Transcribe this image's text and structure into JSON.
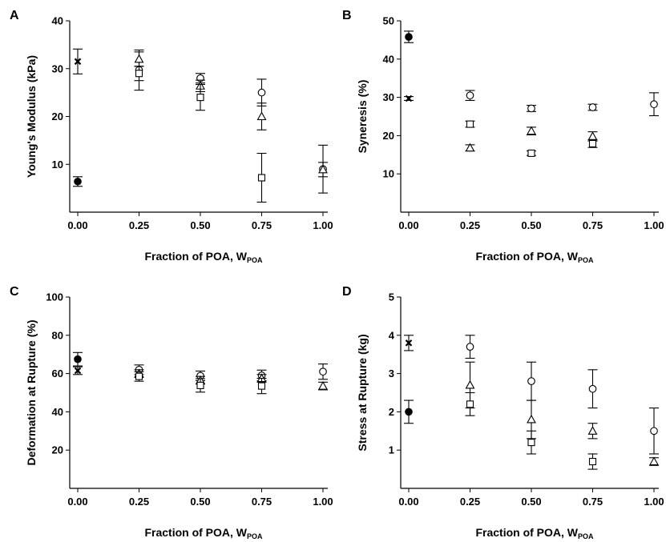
{
  "chart_data": [
    {
      "panel": "A",
      "type": "scatter",
      "xlabel": "Fraction of POA, W",
      "xlabel_sub": "POA",
      "ylabel": "Young's Modulus (kPa)",
      "xlim": [
        0,
        1.0
      ],
      "ylim": [
        0,
        40
      ],
      "x_ticks": [
        "0.00",
        "0.25",
        "0.50",
        "0.75",
        "1.00"
      ],
      "y_ticks": [
        "10",
        "20",
        "30",
        "40"
      ],
      "grid": false,
      "series": [
        {
          "marker": "filled-circle",
          "points": [
            {
              "x": 0.0,
              "y": 6.4,
              "err": 1.0
            }
          ]
        },
        {
          "marker": "cross",
          "points": [
            {
              "x": 0.0,
              "y": 31.5,
              "err": 2.6
            }
          ]
        },
        {
          "marker": "open-circle",
          "points": [
            {
              "x": 0.25,
              "y": 29.7,
              "err": 4.2
            },
            {
              "x": 0.5,
              "y": 28.0,
              "err": 1.0
            },
            {
              "x": 0.75,
              "y": 25.0,
              "err": 2.8
            },
            {
              "x": 1.0,
              "y": 9.0,
              "err": 5.0
            }
          ]
        },
        {
          "marker": "open-triangle",
          "points": [
            {
              "x": 0.25,
              "y": 32.0,
              "err": 1.5
            },
            {
              "x": 0.5,
              "y": 26.4,
              "err": 1.2
            },
            {
              "x": 0.75,
              "y": 20.0,
              "err": 2.8
            },
            {
              "x": 1.0,
              "y": 8.9,
              "err": 1.5
            }
          ]
        },
        {
          "marker": "open-square",
          "points": [
            {
              "x": 0.25,
              "y": 29.0,
              "err": 1.5
            },
            {
              "x": 0.5,
              "y": 24.0,
              "err": 2.7
            },
            {
              "x": 0.75,
              "y": 7.2,
              "err": 5.1
            }
          ]
        }
      ]
    },
    {
      "panel": "B",
      "type": "scatter",
      "xlabel": "Fraction of POA, W",
      "xlabel_sub": "POA",
      "ylabel": "Syneresis (%)",
      "xlim": [
        0,
        1.0
      ],
      "ylim": [
        0,
        50
      ],
      "x_ticks": [
        "0.00",
        "0.25",
        "0.50",
        "0.75",
        "1.00"
      ],
      "y_ticks": [
        "10",
        "20",
        "30",
        "40",
        "50"
      ],
      "grid": false,
      "series": [
        {
          "marker": "filled-circle",
          "points": [
            {
              "x": 0.0,
              "y": 45.8,
              "err": 1.5
            }
          ]
        },
        {
          "marker": "cross",
          "points": [
            {
              "x": 0.0,
              "y": 29.7,
              "err": 0.5
            }
          ]
        },
        {
          "marker": "open-circle",
          "points": [
            {
              "x": 0.25,
              "y": 30.5,
              "err": 1.3
            },
            {
              "x": 0.5,
              "y": 27.1,
              "err": 0.8
            },
            {
              "x": 0.75,
              "y": 27.4,
              "err": 0.8
            },
            {
              "x": 1.0,
              "y": 28.2,
              "err": 3.0
            }
          ]
        },
        {
          "marker": "open-triangle",
          "points": [
            {
              "x": 0.25,
              "y": 16.8,
              "err": 0.8
            },
            {
              "x": 0.5,
              "y": 21.2,
              "err": 1.0
            },
            {
              "x": 0.75,
              "y": 19.8,
              "err": 1.2
            }
          ]
        },
        {
          "marker": "open-square",
          "points": [
            {
              "x": 0.25,
              "y": 23.0,
              "err": 0.8
            },
            {
              "x": 0.5,
              "y": 15.4,
              "err": 0.6
            },
            {
              "x": 0.75,
              "y": 17.9,
              "err": 1.0
            }
          ]
        }
      ]
    },
    {
      "panel": "C",
      "type": "scatter",
      "xlabel": "Fraction of POA, W",
      "xlabel_sub": "POA",
      "ylabel": "Deformation at Rupture (%)",
      "xlim": [
        0,
        1.0
      ],
      "ylim": [
        0,
        100
      ],
      "x_ticks": [
        "0.00",
        "0.25",
        "0.50",
        "0.75",
        "1.00"
      ],
      "y_ticks": [
        "20",
        "40",
        "60",
        "80",
        "100"
      ],
      "grid": false,
      "series": [
        {
          "marker": "filled-circle",
          "points": [
            {
              "x": 0.0,
              "y": 67.5,
              "err": 3.5
            }
          ]
        },
        {
          "marker": "cross",
          "points": [
            {
              "x": 0.0,
              "y": 61.5,
              "err": 2.0
            }
          ]
        },
        {
          "marker": "open-circle",
          "points": [
            {
              "x": 0.25,
              "y": 62.0,
              "err": 2.5
            },
            {
              "x": 0.5,
              "y": 58.8,
              "err": 2.5
            },
            {
              "x": 0.75,
              "y": 59.0,
              "err": 2.8
            },
            {
              "x": 1.0,
              "y": 61.0,
              "err": 4.0
            }
          ]
        },
        {
          "marker": "open-triangle",
          "points": [
            {
              "x": 0.25,
              "y": 60.0,
              "err": 2.0
            },
            {
              "x": 0.5,
              "y": 56.5,
              "err": 2.0
            },
            {
              "x": 0.75,
              "y": 57.5,
              "err": 2.0
            },
            {
              "x": 1.0,
              "y": 53.5,
              "err": 2.0
            }
          ]
        },
        {
          "marker": "open-square",
          "points": [
            {
              "x": 0.25,
              "y": 58.5,
              "err": 2.5
            },
            {
              "x": 0.5,
              "y": 53.8,
              "err": 3.5
            },
            {
              "x": 0.75,
              "y": 53.5,
              "err": 4.0
            }
          ]
        }
      ]
    },
    {
      "panel": "D",
      "type": "scatter",
      "xlabel": "Fraction of POA, W",
      "xlabel_sub": "POA",
      "ylabel": "Stress at Rupture (kg)",
      "xlim": [
        0,
        1.0
      ],
      "ylim": [
        0,
        5
      ],
      "x_ticks": [
        "0.00",
        "0.25",
        "0.50",
        "0.75",
        "1.00"
      ],
      "y_ticks": [
        "1",
        "2",
        "3",
        "4",
        "5"
      ],
      "grid": false,
      "series": [
        {
          "marker": "filled-circle",
          "points": [
            {
              "x": 0.0,
              "y": 2.0,
              "err": 0.3
            }
          ]
        },
        {
          "marker": "cross",
          "points": [
            {
              "x": 0.0,
              "y": 3.8,
              "err": 0.2
            }
          ]
        },
        {
          "marker": "open-circle",
          "points": [
            {
              "x": 0.25,
              "y": 3.7,
              "err": 0.3
            },
            {
              "x": 0.5,
              "y": 2.8,
              "err": 0.5
            },
            {
              "x": 0.75,
              "y": 2.6,
              "err": 0.5
            },
            {
              "x": 1.0,
              "y": 1.5,
              "err": 0.6
            }
          ]
        },
        {
          "marker": "open-triangle",
          "points": [
            {
              "x": 0.25,
              "y": 2.7,
              "err": 0.6
            },
            {
              "x": 0.5,
              "y": 1.8,
              "err": 0.5
            },
            {
              "x": 0.75,
              "y": 1.5,
              "err": 0.2
            },
            {
              "x": 1.0,
              "y": 0.7,
              "err": 0.1
            }
          ]
        },
        {
          "marker": "open-square",
          "points": [
            {
              "x": 0.25,
              "y": 2.2,
              "err": 0.3
            },
            {
              "x": 0.5,
              "y": 1.2,
              "err": 0.3
            },
            {
              "x": 0.75,
              "y": 0.7,
              "err": 0.2
            }
          ]
        }
      ]
    }
  ]
}
